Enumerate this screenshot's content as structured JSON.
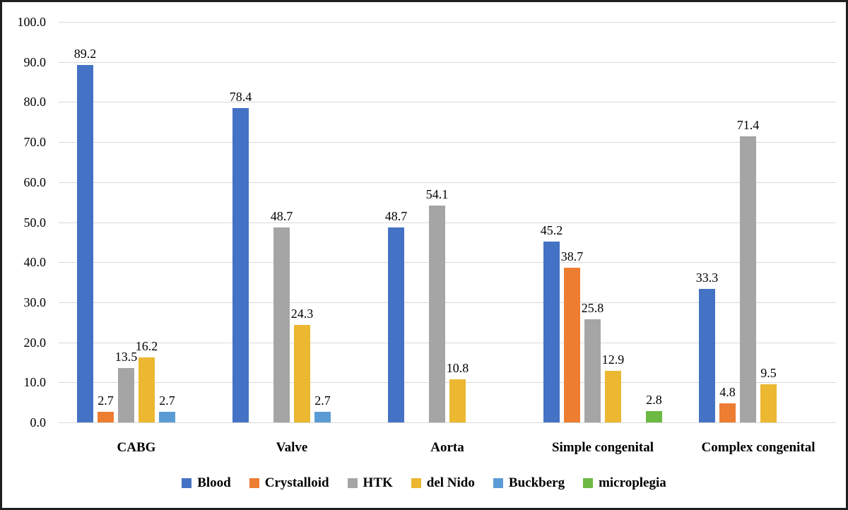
{
  "chart_data": {
    "type": "bar",
    "title": "",
    "xlabel": "",
    "ylabel": "",
    "ylim": [
      0,
      100
    ],
    "ytick_step": 10,
    "y_ticks": [
      "0.0",
      "10.0",
      "20.0",
      "30.0",
      "40.0",
      "50.0",
      "60.0",
      "70.0",
      "80.0",
      "90.0",
      "100.0"
    ],
    "grid": true,
    "legend_position": "bottom",
    "gridline_color": "#d9d9d9",
    "categories": [
      "CABG",
      "Valve",
      "Aorta",
      "Simple congenital",
      "Complex congenital"
    ],
    "series": [
      {
        "name": "Blood",
        "color": "#4472c4",
        "values": [
          89.2,
          78.4,
          48.7,
          45.2,
          33.3
        ]
      },
      {
        "name": "Crystalloid",
        "color": "#ed7d31",
        "values": [
          2.7,
          null,
          null,
          38.7,
          4.8
        ]
      },
      {
        "name": "HTK",
        "color": "#a5a5a5",
        "values": [
          13.5,
          48.7,
          54.1,
          25.8,
          71.4
        ]
      },
      {
        "name": "del Nido",
        "color": "#ecb731",
        "values": [
          16.2,
          24.3,
          10.8,
          12.9,
          9.5
        ]
      },
      {
        "name": "Buckberg",
        "color": "#5b9bd5",
        "values": [
          2.7,
          2.7,
          null,
          null,
          null
        ]
      },
      {
        "name": "microplegia",
        "color": "#6cba42",
        "values": [
          null,
          null,
          null,
          2.8,
          null
        ]
      }
    ]
  }
}
